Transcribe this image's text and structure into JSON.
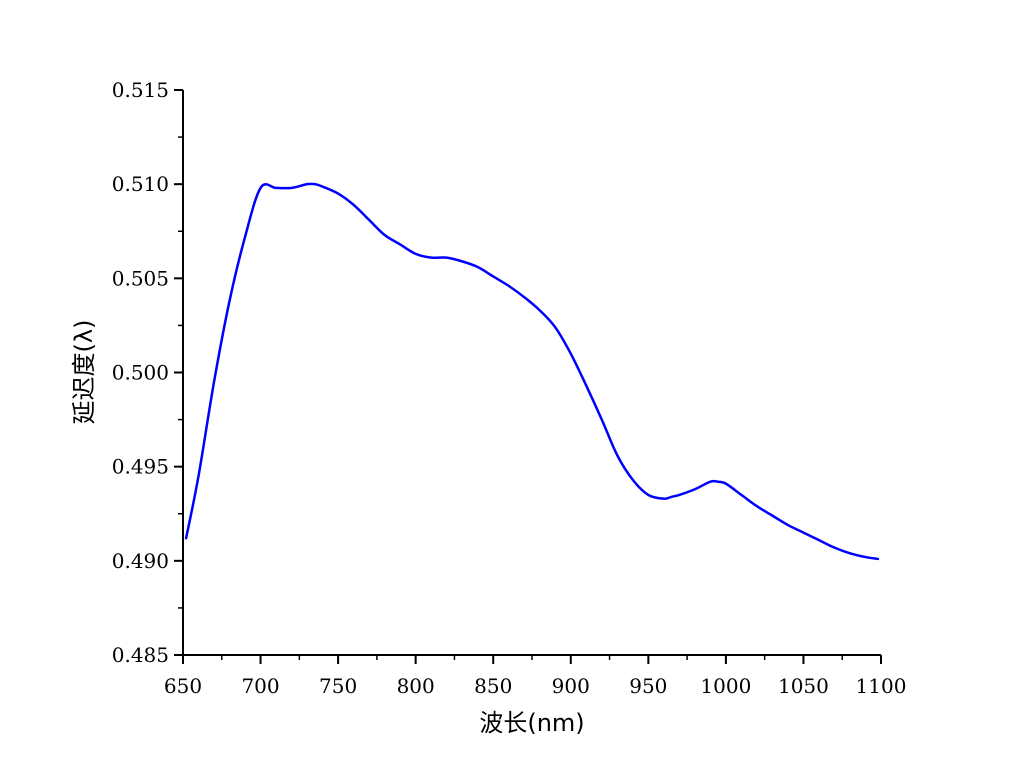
{
  "chart_data": {
    "type": "line",
    "title": "",
    "xlabel": "波长(nm)",
    "ylabel": "延迟度(λ)",
    "xlim": [
      650,
      1100
    ],
    "ylim": [
      0.485,
      0.515
    ],
    "x_ticks": [
      650,
      700,
      750,
      800,
      850,
      900,
      950,
      1000,
      1050,
      1100
    ],
    "x_tick_labels": [
      "650",
      "700",
      "750",
      "800",
      "850",
      "900",
      "950",
      "1000",
      "1050",
      "1100"
    ],
    "y_ticks": [
      0.485,
      0.49,
      0.495,
      0.5,
      0.505,
      0.51,
      0.515
    ],
    "y_tick_labels": [
      "0.485",
      "0.490",
      "0.495",
      "0.500",
      "0.505",
      "0.510",
      "0.515"
    ],
    "grid": false,
    "legend": "none",
    "series": [
      {
        "color": "#0000ff",
        "x": [
          652,
          660,
          670,
          680,
          690,
          700,
          710,
          720,
          730,
          735,
          740,
          750,
          760,
          770,
          780,
          790,
          800,
          810,
          820,
          830,
          840,
          850,
          860,
          870,
          880,
          890,
          900,
          910,
          920,
          930,
          940,
          950,
          960,
          965,
          970,
          980,
          990,
          995,
          1000,
          1010,
          1020,
          1030,
          1040,
          1050,
          1060,
          1070,
          1080,
          1090,
          1098
        ],
        "y": [
          0.4912,
          0.4945,
          0.4995,
          0.5038,
          0.5072,
          0.5098,
          0.5098,
          0.5098,
          0.51,
          0.51,
          0.50987,
          0.5095,
          0.5089,
          0.5081,
          0.5073,
          0.5068,
          0.5063,
          0.5061,
          0.5061,
          0.5059,
          0.5056,
          0.5051,
          0.5046,
          0.504,
          0.5033,
          0.5024,
          0.501,
          0.4993,
          0.4975,
          0.4956,
          0.4943,
          0.4935,
          0.4933,
          0.4934,
          0.4935,
          0.4938,
          0.4942,
          0.4942,
          0.4941,
          0.4935,
          0.4929,
          0.4924,
          0.4919,
          0.4915,
          0.4911,
          0.4907,
          0.4904,
          0.4902,
          0.4901
        ]
      }
    ]
  }
}
